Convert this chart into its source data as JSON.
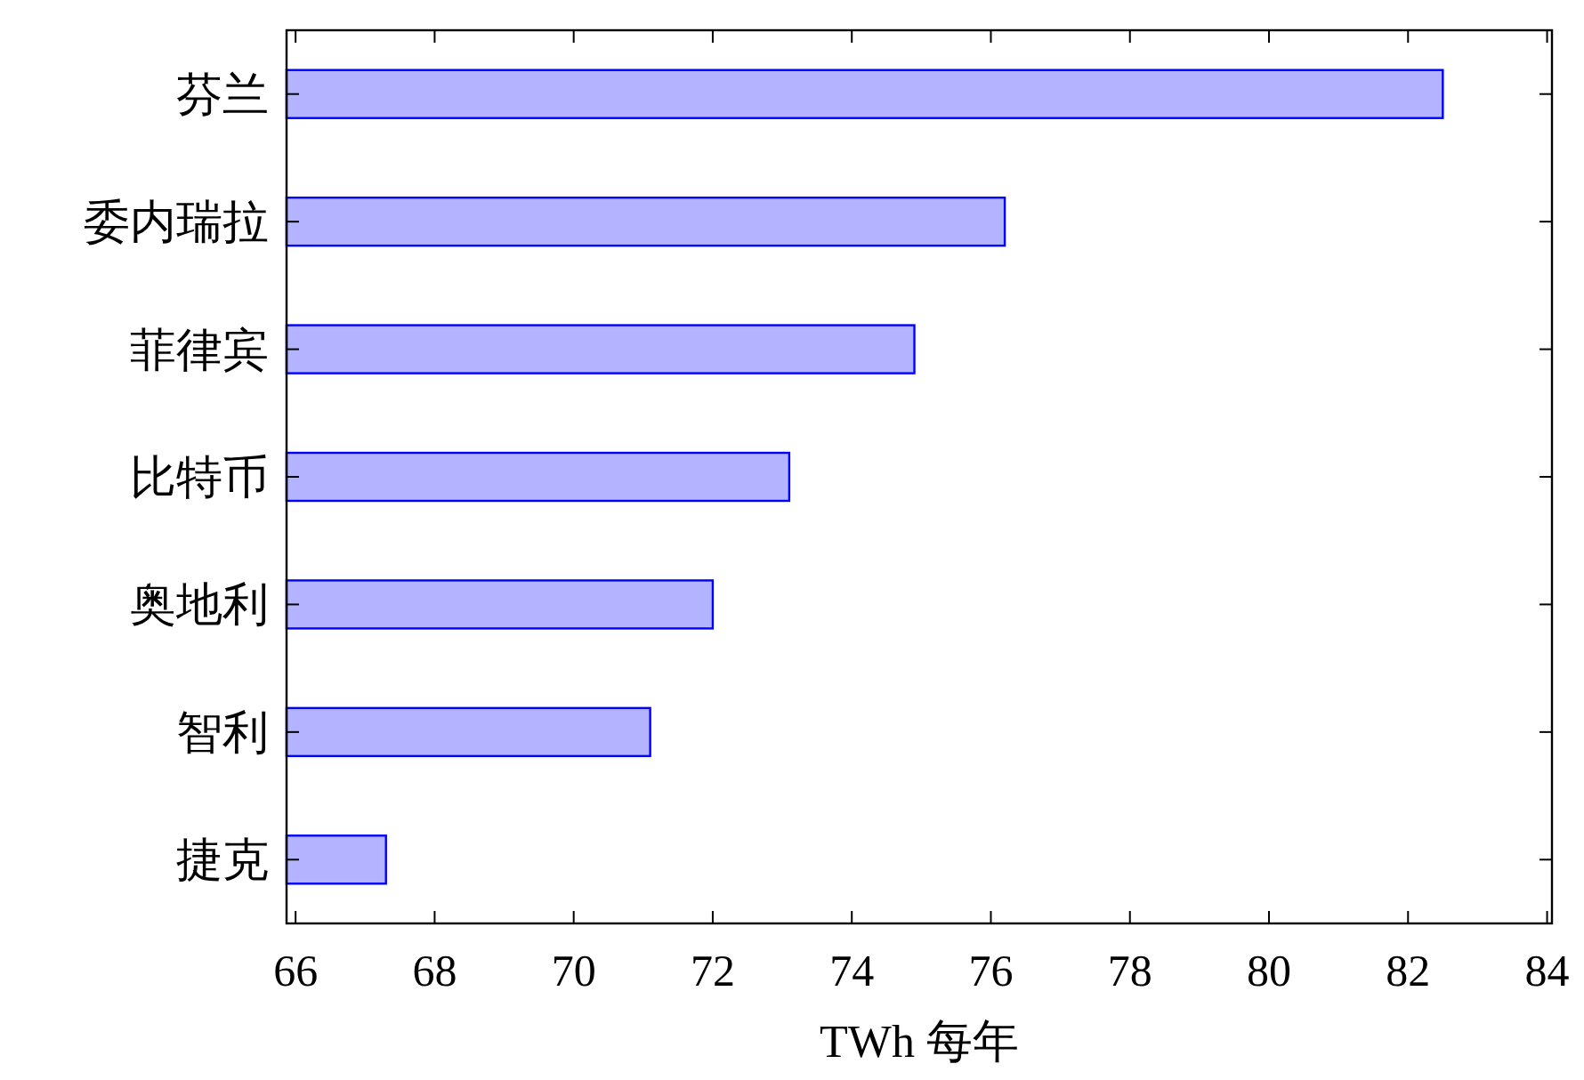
{
  "chart_data": {
    "type": "bar",
    "orientation": "horizontal",
    "xlabel": "TWh 每年",
    "categories": [
      "芬兰",
      "委内瑞拉",
      "菲律宾",
      "比特币",
      "奥地利",
      "智利",
      "捷克"
    ],
    "values": [
      82.5,
      76.2,
      74.9,
      73.1,
      72.0,
      71.1,
      67.3
    ],
    "color": "#b3b3ff",
    "xlim": [
      65.87,
      84.07
    ],
    "xticks": [
      66,
      68,
      70,
      72,
      74,
      76,
      78,
      80,
      82,
      84
    ],
    "grid": false
  }
}
